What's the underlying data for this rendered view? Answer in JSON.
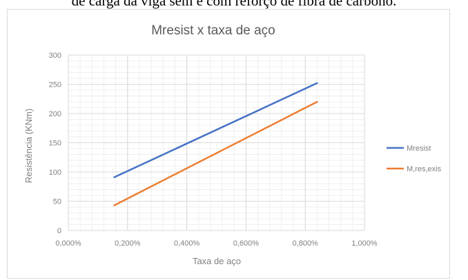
{
  "caption": "de carga da viga sem e com reforço de fibra de carbono.",
  "chart_data": {
    "type": "line",
    "title": "Mresist x taxa de aço",
    "xlabel": "Taxa de aço",
    "ylabel": "Resistência (KNm)",
    "x_ticks": [
      0,
      0.2,
      0.4,
      0.6,
      0.8,
      1.0
    ],
    "x_tick_labels": [
      "0,000%",
      "0,200%",
      "0,400%",
      "0,600%",
      "0,800%",
      "1,000%"
    ],
    "y_ticks": [
      0,
      50,
      100,
      150,
      200,
      250,
      300
    ],
    "y_tick_labels": [
      "0",
      "50",
      "100",
      "150",
      "200",
      "250",
      "300"
    ],
    "xlim": [
      0,
      1.0
    ],
    "ylim": [
      0,
      300
    ],
    "grid": true,
    "legend_position": "right",
    "series": [
      {
        "name": "Mresist",
        "color": "#4472c4",
        "x": [
          0.155,
          0.84
        ],
        "y": [
          91,
          252
        ]
      },
      {
        "name": "M,res,exis",
        "color": "#ed7d31",
        "x": [
          0.155,
          0.84
        ],
        "y": [
          43,
          220
        ]
      }
    ]
  }
}
